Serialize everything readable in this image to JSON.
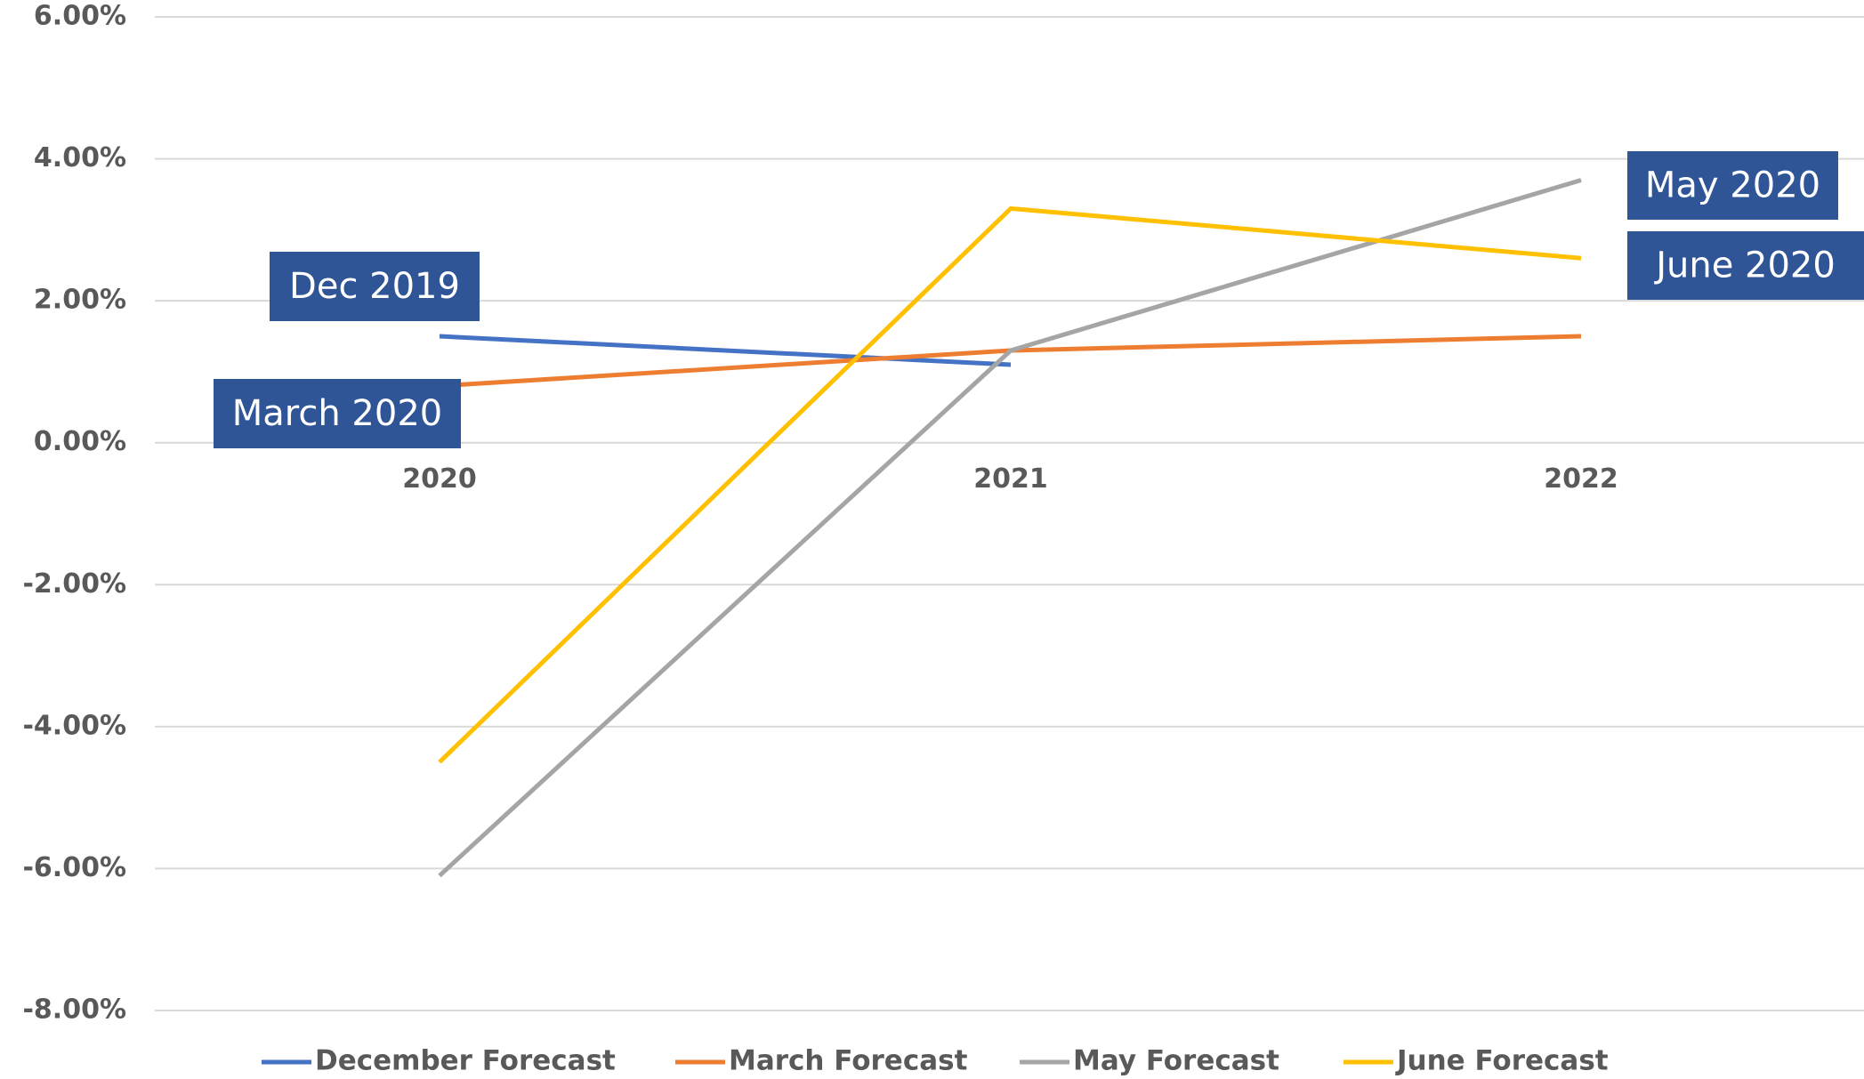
{
  "chart_data": {
    "type": "line",
    "categories": [
      "2020",
      "2021",
      "2022"
    ],
    "series": [
      {
        "name": "December Forecast",
        "color": "#4472c4",
        "values": [
          1.5,
          1.1,
          null
        ]
      },
      {
        "name": "March Forecast",
        "color": "#ed7d31",
        "values": [
          0.8,
          1.3,
          1.5
        ]
      },
      {
        "name": "May Forecast",
        "color": "#a5a5a5",
        "values": [
          -6.1,
          1.3,
          3.7
        ]
      },
      {
        "name": "June Forecast",
        "color": "#ffc000",
        "values": [
          -4.5,
          3.3,
          2.6
        ]
      }
    ],
    "ylim": [
      -8,
      6
    ],
    "yticks": [
      {
        "value": -8,
        "label": "-8.00%"
      },
      {
        "value": -6,
        "label": "-6.00%"
      },
      {
        "value": -4,
        "label": "-4.00%"
      },
      {
        "value": -2,
        "label": "-2.00%"
      },
      {
        "value": 0,
        "label": "0.00%"
      },
      {
        "value": 2,
        "label": "2.00%"
      },
      {
        "value": 4,
        "label": "4.00%"
      },
      {
        "value": 6,
        "label": "6.00%"
      }
    ],
    "grid": true,
    "legend": "bottom",
    "annotations": [
      {
        "text": "Dec 2019"
      },
      {
        "text": "March 2020"
      },
      {
        "text": "May 2020"
      },
      {
        "text": "June 2020"
      }
    ],
    "annotation_color": "#2f5597"
  }
}
